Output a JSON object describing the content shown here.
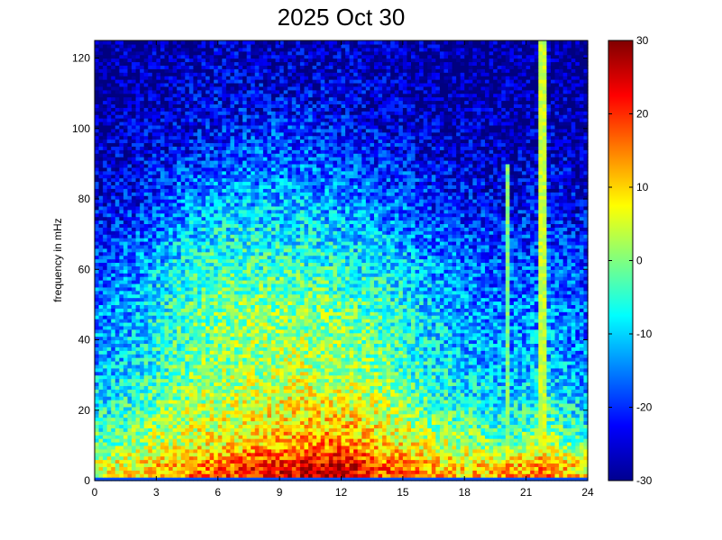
{
  "chart_data": {
    "type": "heatmap",
    "title": "2025 Oct 30",
    "xlabel": "",
    "ylabel": "frequency in mHz",
    "xlim": [
      0,
      24
    ],
    "ylim": [
      0,
      125
    ],
    "x_ticks": [
      0,
      3,
      6,
      9,
      12,
      15,
      18,
      21,
      24
    ],
    "x_tick_labels": [
      "0",
      "3",
      "6",
      "9",
      "12",
      "15",
      "18",
      "21",
      "24"
    ],
    "y_ticks": [
      0,
      20,
      40,
      60,
      80,
      100,
      120
    ],
    "y_tick_labels": [
      "0",
      "20",
      "40",
      "60",
      "80",
      "100",
      "120"
    ],
    "colorbar": {
      "range": [
        -30,
        30
      ],
      "ticks": [
        -30,
        -20,
        -10,
        0,
        10,
        20,
        30
      ],
      "tick_labels": [
        "-30",
        "-20",
        "-10",
        "0",
        "10",
        "20",
        "30"
      ],
      "colormap": "jet"
    },
    "grid": false,
    "value_grid": {
      "x_hours": [
        0,
        2,
        4,
        6,
        8,
        10,
        12,
        14,
        16,
        18,
        20,
        22,
        24
      ],
      "freq_mHz": [
        2,
        5,
        10,
        20,
        30,
        40,
        50,
        60,
        70,
        80,
        90,
        100,
        110,
        120
      ],
      "values": [
        [
          6,
          9,
          14,
          18,
          22,
          24,
          26,
          18,
          14,
          10,
          12,
          16,
          8
        ],
        [
          4,
          8,
          12,
          16,
          20,
          22,
          24,
          16,
          12,
          8,
          10,
          14,
          6
        ],
        [
          -2,
          2,
          6,
          8,
          12,
          14,
          16,
          10,
          6,
          2,
          -2,
          4,
          -4
        ],
        [
          -8,
          -4,
          2,
          4,
          6,
          8,
          8,
          4,
          -2,
          -6,
          -8,
          -4,
          -10
        ],
        [
          -12,
          -8,
          -2,
          2,
          2,
          4,
          2,
          0,
          -6,
          -10,
          -12,
          -10,
          -14
        ],
        [
          -14,
          -10,
          -4,
          0,
          2,
          2,
          0,
          -2,
          -8,
          -12,
          -14,
          -12,
          -16
        ],
        [
          -16,
          -12,
          -4,
          0,
          0,
          0,
          -2,
          -4,
          -10,
          -14,
          -16,
          -14,
          -18
        ],
        [
          -18,
          -14,
          -8,
          -4,
          -4,
          -4,
          -6,
          -8,
          -12,
          -16,
          -18,
          -16,
          -20
        ],
        [
          -22,
          -18,
          -12,
          -8,
          -8,
          -8,
          -10,
          -12,
          -16,
          -18,
          -20,
          -20,
          -22
        ],
        [
          -24,
          -22,
          -16,
          -12,
          -12,
          -12,
          -14,
          -16,
          -20,
          -22,
          -24,
          -22,
          -24
        ],
        [
          -26,
          -24,
          -20,
          -18,
          -16,
          -16,
          -18,
          -20,
          -22,
          -24,
          -26,
          -24,
          -26
        ],
        [
          -28,
          -26,
          -24,
          -22,
          -20,
          -20,
          -22,
          -24,
          -26,
          -26,
          -28,
          -26,
          -28
        ],
        [
          -29,
          -28,
          -26,
          -24,
          -24,
          -24,
          -24,
          -26,
          -28,
          -28,
          -28,
          -28,
          -29
        ],
        [
          -30,
          -28,
          -27,
          -26,
          -26,
          -26,
          -26,
          -27,
          -28,
          -29,
          -29,
          -29,
          -30
        ]
      ]
    },
    "vertical_streaks": [
      {
        "x": 20.1,
        "fmax": 90,
        "level": 0
      },
      {
        "x": 21.8,
        "fmax": 125,
        "level": 4
      }
    ]
  }
}
